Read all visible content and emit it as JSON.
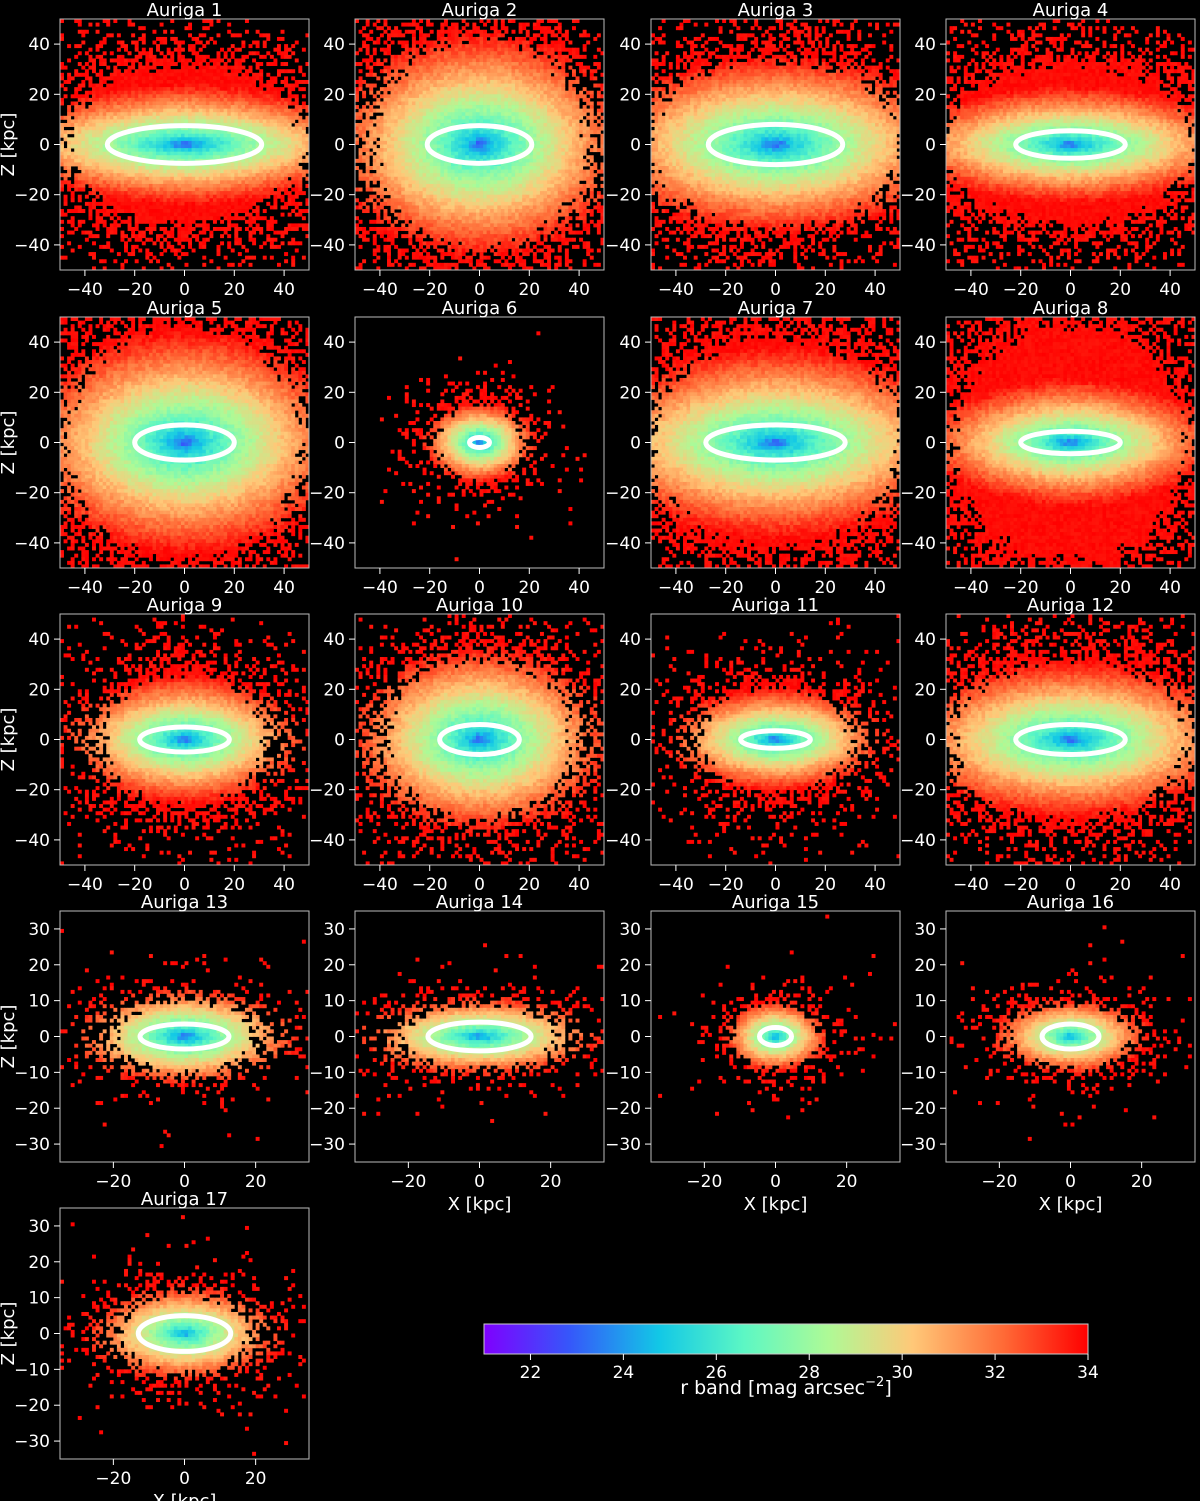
{
  "chart_data": [
    {
      "type": "heatmap",
      "title": "Auriga 1",
      "xlim": [
        -50,
        50
      ],
      "ylim": [
        -50,
        50
      ],
      "xticks": [
        -40,
        -20,
        0,
        20,
        40
      ],
      "yticks": [
        -40,
        -20,
        0,
        20,
        40
      ],
      "xlabel": "",
      "ylabel": "Z [kpc]",
      "halo_extent": [
        45,
        30
      ],
      "bright_core": [
        22,
        4
      ],
      "ellipse": [
        31,
        7.5
      ],
      "peak_mag": 21.8
    },
    {
      "type": "heatmap",
      "title": "Auriga 2",
      "xlim": [
        -50,
        50
      ],
      "ylim": [
        -50,
        50
      ],
      "xticks": [
        -40,
        -20,
        0,
        20,
        40
      ],
      "yticks": [
        -40,
        -20,
        0,
        20,
        40
      ],
      "xlabel": "",
      "ylabel": "",
      "halo_extent": [
        40,
        40
      ],
      "bright_core": [
        16,
        9
      ],
      "ellipse": [
        21,
        7.5
      ],
      "peak_mag": 22.0
    },
    {
      "type": "heatmap",
      "title": "Auriga 3",
      "xlim": [
        -50,
        50
      ],
      "ylim": [
        -50,
        50
      ],
      "xticks": [
        -40,
        -20,
        0,
        20,
        40
      ],
      "yticks": [
        -40,
        -20,
        0,
        20,
        40
      ],
      "xlabel": "",
      "ylabel": "",
      "halo_extent": [
        48,
        32
      ],
      "bright_core": [
        20,
        7
      ],
      "ellipse": [
        27,
        8
      ],
      "peak_mag": 22.0
    },
    {
      "type": "heatmap",
      "title": "Auriga 4",
      "xlim": [
        -50,
        50
      ],
      "ylim": [
        -50,
        50
      ],
      "xticks": [
        -40,
        -20,
        0,
        20,
        40
      ],
      "yticks": [
        -40,
        -20,
        0,
        20,
        40
      ],
      "xlabel": "",
      "ylabel": "",
      "halo_extent": [
        48,
        30
      ],
      "bright_core": [
        18,
        4
      ],
      "ellipse": [
        22,
        5.5
      ],
      "peak_mag": 22.0
    },
    {
      "type": "heatmap",
      "title": "Auriga 5",
      "xlim": [
        -50,
        50
      ],
      "ylim": [
        -50,
        50
      ],
      "xticks": [
        -40,
        -20,
        0,
        20,
        40
      ],
      "yticks": [
        -40,
        -20,
        0,
        20,
        40
      ],
      "xlabel": "",
      "ylabel": "Z [kpc]",
      "halo_extent": [
        45,
        45
      ],
      "bright_core": [
        16,
        8
      ],
      "ellipse": [
        20,
        7
      ],
      "peak_mag": 21.8
    },
    {
      "type": "heatmap",
      "title": "Auriga 6",
      "xlim": [
        -50,
        50
      ],
      "ylim": [
        -50,
        50
      ],
      "xticks": [
        -40,
        -20,
        0,
        20,
        40
      ],
      "yticks": [
        -40,
        -20,
        0,
        20,
        40
      ],
      "xlabel": "",
      "ylabel": "",
      "halo_extent": [
        16,
        14
      ],
      "bright_core": [
        5,
        3
      ],
      "ellipse": [
        4,
        2
      ],
      "peak_mag": 21.5
    },
    {
      "type": "heatmap",
      "title": "Auriga 7",
      "xlim": [
        -50,
        50
      ],
      "ylim": [
        -50,
        50
      ],
      "xticks": [
        -40,
        -20,
        0,
        20,
        40
      ],
      "yticks": [
        -40,
        -20,
        0,
        20,
        40
      ],
      "xlabel": "",
      "ylabel": "",
      "halo_extent": [
        48,
        40
      ],
      "bright_core": [
        22,
        7
      ],
      "ellipse": [
        28,
        7
      ],
      "peak_mag": 22.0
    },
    {
      "type": "heatmap",
      "title": "Auriga 8",
      "xlim": [
        -50,
        50
      ],
      "ylim": [
        -50,
        50
      ],
      "xticks": [
        -40,
        -20,
        0,
        20,
        40
      ],
      "yticks": [
        -40,
        -20,
        0,
        20,
        40
      ],
      "xlabel": "",
      "ylabel": "",
      "halo_extent": [
        45,
        45
      ],
      "bright_core": [
        14,
        4
      ],
      "ellipse": [
        20,
        4.5
      ],
      "peak_mag": 22.0
    },
    {
      "type": "heatmap",
      "title": "Auriga 9",
      "xlim": [
        -50,
        50
      ],
      "ylim": [
        -50,
        50
      ],
      "xticks": [
        -40,
        -20,
        0,
        20,
        40
      ],
      "yticks": [
        -40,
        -20,
        0,
        20,
        40
      ],
      "xlabel": "",
      "ylabel": "Z [kpc]",
      "halo_extent": [
        30,
        25
      ],
      "bright_core": [
        14,
        5
      ],
      "ellipse": [
        18,
        5
      ],
      "peak_mag": 22.0
    },
    {
      "type": "heatmap",
      "title": "Auriga 10",
      "xlim": [
        -50,
        50
      ],
      "ylim": [
        -50,
        50
      ],
      "xticks": [
        -40,
        -20,
        0,
        20,
        40
      ],
      "yticks": [
        -40,
        -20,
        0,
        20,
        40
      ],
      "xlabel": "",
      "ylabel": "",
      "halo_extent": [
        35,
        30
      ],
      "bright_core": [
        14,
        8
      ],
      "ellipse": [
        16,
        6
      ],
      "peak_mag": 22.0
    },
    {
      "type": "heatmap",
      "title": "Auriga 11",
      "xlim": [
        -50,
        50
      ],
      "ylim": [
        -50,
        50
      ],
      "xticks": [
        -40,
        -20,
        0,
        20,
        40
      ],
      "yticks": [
        -40,
        -20,
        0,
        20,
        40
      ],
      "xlabel": "",
      "ylabel": "",
      "halo_extent": [
        28,
        20
      ],
      "bright_core": [
        12,
        4
      ],
      "ellipse": [
        14,
        3.5
      ],
      "peak_mag": 22.0
    },
    {
      "type": "heatmap",
      "title": "Auriga 12",
      "xlim": [
        -50,
        50
      ],
      "ylim": [
        -50,
        50
      ],
      "xticks": [
        -40,
        -20,
        0,
        20,
        40
      ],
      "yticks": [
        -40,
        -20,
        0,
        20,
        40
      ],
      "xlabel": "",
      "ylabel": "",
      "halo_extent": [
        45,
        30
      ],
      "bright_core": [
        18,
        6
      ],
      "ellipse": [
        22,
        6
      ],
      "peak_mag": 22.0
    },
    {
      "type": "heatmap",
      "title": "Auriga 13",
      "xlim": [
        -35,
        35
      ],
      "ylim": [
        -35,
        35
      ],
      "xticks": [
        -20,
        0,
        20
      ],
      "yticks": [
        -30,
        -20,
        -10,
        0,
        10,
        20,
        30
      ],
      "xlabel": "",
      "ylabel": "Z [kpc]",
      "halo_extent": [
        18,
        9
      ],
      "bright_core": [
        10,
        3.5
      ],
      "ellipse": [
        12.5,
        3.5
      ],
      "peak_mag": 22.0
    },
    {
      "type": "heatmap",
      "title": "Auriga 14",
      "xlim": [
        -35,
        35
      ],
      "ylim": [
        -35,
        35
      ],
      "xticks": [
        -20,
        0,
        20
      ],
      "yticks": [
        -30,
        -20,
        -10,
        0,
        10,
        20,
        30
      ],
      "xlabel": "X [kpc]",
      "ylabel": "",
      "halo_extent": [
        20,
        8
      ],
      "bright_core": [
        12,
        3
      ],
      "ellipse": [
        14.5,
        4
      ],
      "peak_mag": 22.5
    },
    {
      "type": "heatmap",
      "title": "Auriga 15",
      "xlim": [
        -35,
        35
      ],
      "ylim": [
        -35,
        35
      ],
      "xticks": [
        -20,
        0,
        20
      ],
      "yticks": [
        -30,
        -20,
        -10,
        0,
        10,
        20,
        30
      ],
      "xlabel": "X [kpc]",
      "ylabel": "",
      "halo_extent": [
        11,
        8
      ],
      "bright_core": [
        4,
        2.5
      ],
      "ellipse": [
        4.5,
        2.5
      ],
      "peak_mag": 22.5
    },
    {
      "type": "heatmap",
      "title": "Auriga 16",
      "xlim": [
        -35,
        35
      ],
      "ylim": [
        -35,
        35
      ],
      "xticks": [
        -20,
        0,
        20
      ],
      "yticks": [
        -30,
        -20,
        -10,
        0,
        10,
        20,
        30
      ],
      "xlabel": "X [kpc]",
      "ylabel": "",
      "halo_extent": [
        16,
        8
      ],
      "bright_core": [
        7,
        3
      ],
      "ellipse": [
        8,
        3.5
      ],
      "peak_mag": 23.0
    },
    {
      "type": "heatmap",
      "title": "Auriga 17",
      "xlim": [
        -35,
        35
      ],
      "ylim": [
        -35,
        35
      ],
      "xticks": [
        -20,
        0,
        20
      ],
      "yticks": [
        -30,
        -20,
        -10,
        0,
        10,
        20,
        30
      ],
      "xlabel": "X [kpc]",
      "ylabel": "Z [kpc]",
      "halo_extent": [
        17,
        10
      ],
      "bright_core": [
        10,
        4
      ],
      "ellipse": [
        13,
        5
      ],
      "peak_mag": 23.0
    }
  ],
  "colorbar": {
    "label": "r band [mag arcsec",
    "label_sup": "−2",
    "label_close": "]",
    "range": [
      21,
      34
    ],
    "ticks": [
      22,
      24,
      26,
      28,
      30,
      32,
      34
    ],
    "colormap": "rainbow",
    "colors": [
      "#7f00ff",
      "#3656fa",
      "#12c8e6",
      "#5cf7c4",
      "#aefa96",
      "#ffc878",
      "#ff6a36",
      "#ff0000"
    ]
  },
  "ellipse_color": "#ffffff"
}
